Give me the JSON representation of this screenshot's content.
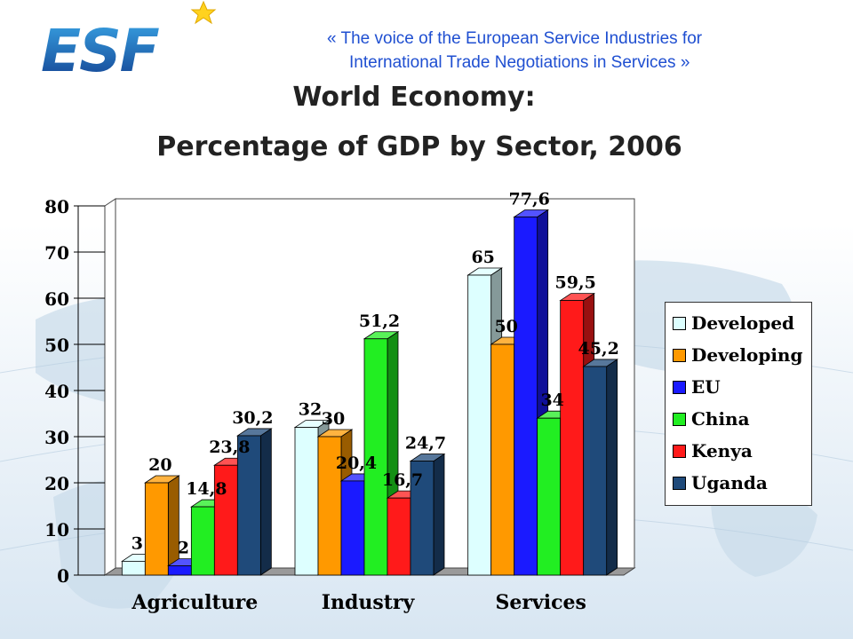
{
  "header": {
    "logo_text": "ESF",
    "tagline_line1": "«  The voice of the European Service Industries for",
    "tagline_line2": "International Trade Negotiations in Services  »"
  },
  "title": {
    "line1": "World Economy:",
    "line2": "Percentage of GDP by Sector, 2006"
  },
  "chart_data": {
    "type": "bar",
    "categories": [
      "Agriculture",
      "Industry",
      "Services"
    ],
    "ylim": [
      0,
      80
    ],
    "yticks": [
      "0",
      "10",
      "20",
      "30",
      "40",
      "50",
      "60",
      "70",
      "80"
    ],
    "grid": false,
    "legend_position": "right",
    "series": [
      {
        "name": "Developed",
        "color": "#ddffff",
        "values": [
          3,
          32,
          65
        ],
        "labels": [
          "3",
          "32",
          "65"
        ]
      },
      {
        "name": "Developing",
        "color": "#ff9900",
        "values": [
          20,
          30,
          50
        ],
        "labels": [
          "20",
          "30",
          "50"
        ]
      },
      {
        "name": "EU",
        "color": "#1a1aff",
        "values": [
          2,
          20.4,
          77.6
        ],
        "labels": [
          "2",
          "20,4",
          "77,6"
        ]
      },
      {
        "name": "China",
        "color": "#22ee22",
        "values": [
          14.8,
          51.2,
          34
        ],
        "labels": [
          "14,8",
          "51,2",
          "34"
        ]
      },
      {
        "name": "Kenya",
        "color": "#ff1a1a",
        "values": [
          23.8,
          16.7,
          59.5
        ],
        "labels": [
          "23,8",
          "16,7",
          "59,5"
        ]
      },
      {
        "name": "Uganda",
        "color": "#1f4a7a",
        "values": [
          30.2,
          24.7,
          45.2
        ],
        "labels": [
          "30,2",
          "24,7",
          "45,2"
        ]
      }
    ]
  }
}
